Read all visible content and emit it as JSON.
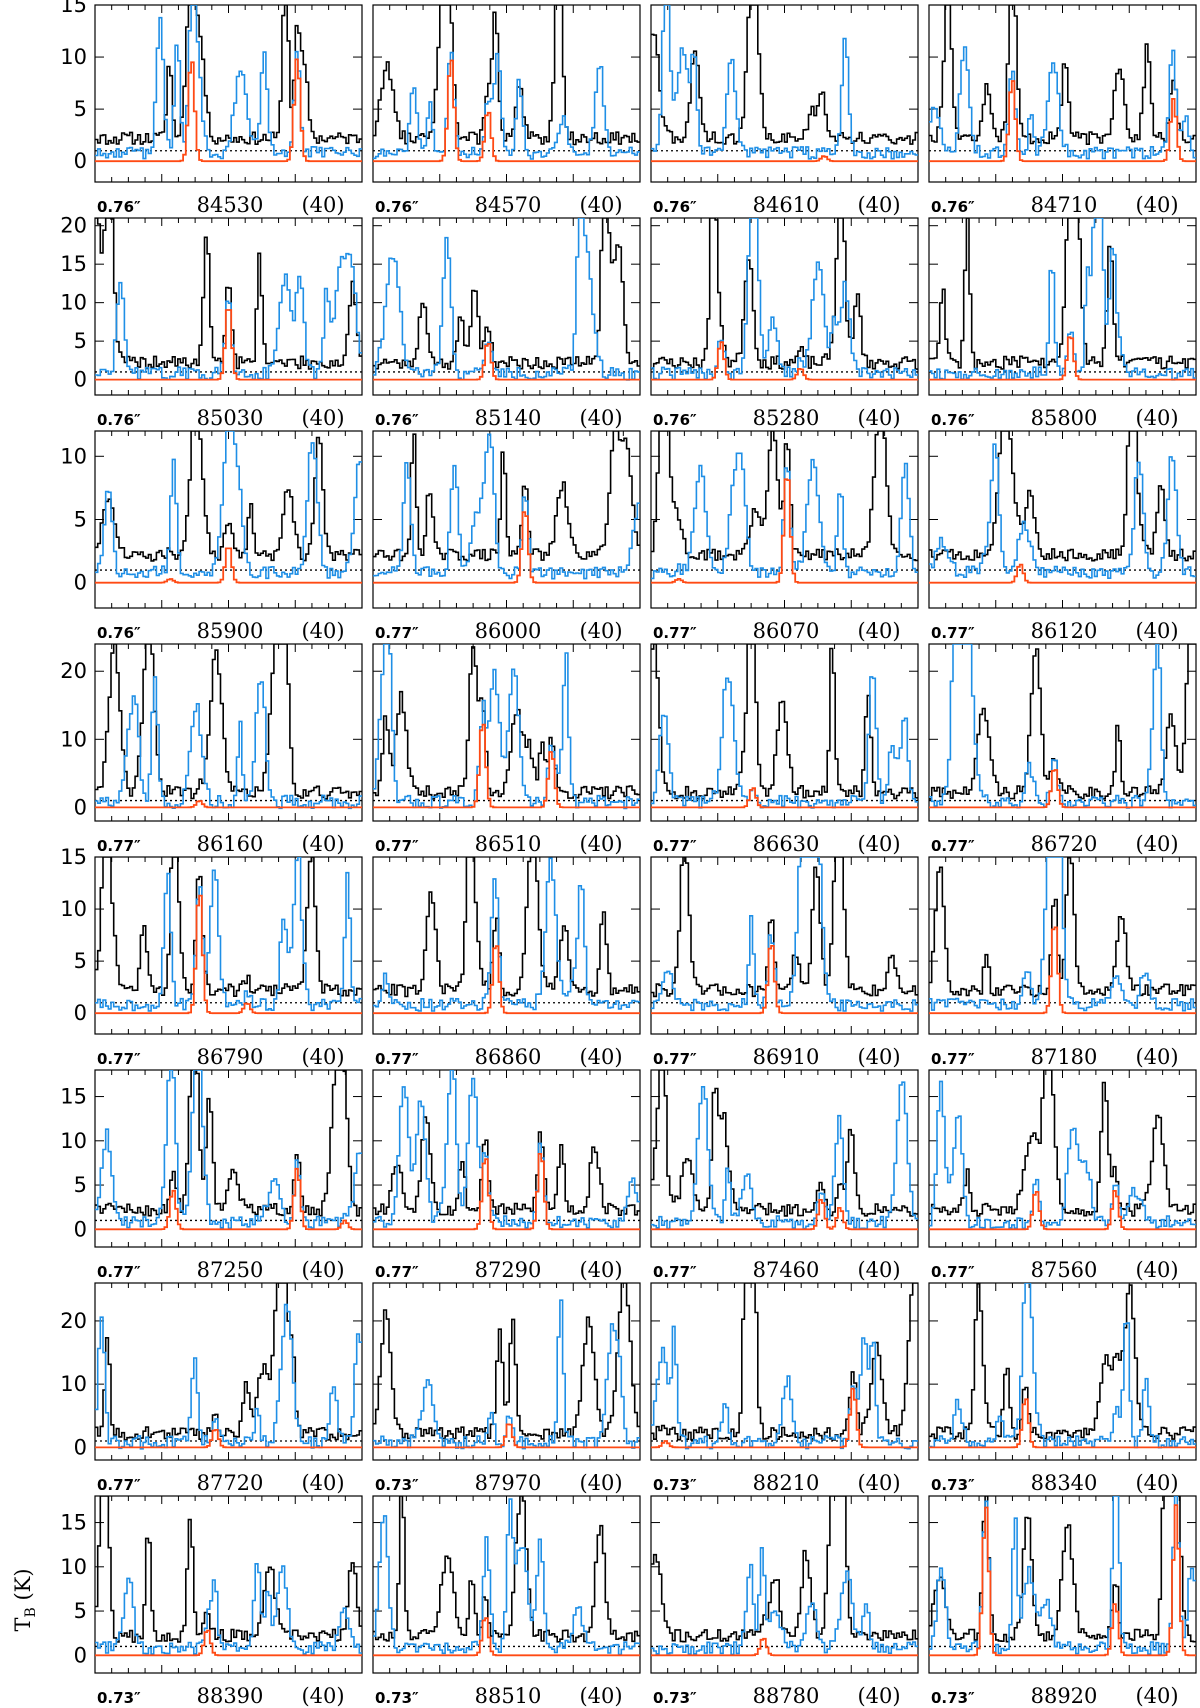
{
  "chart_data": {
    "type": "line",
    "ylabel": "T_B (K)",
    "grid": false,
    "series_colors": {
      "observed": "#000000",
      "model_all": "#1f8fe6",
      "model_molecule": "#ff4a14"
    },
    "rows": [
      {
        "ylim": [
          -2,
          15
        ],
        "yticks": [
          0,
          5,
          10,
          15
        ],
        "panels": [
          {
            "resolution": "0.76″",
            "frequency": "84530",
            "channels": "(40)",
            "mol_peaks": [
              [
                0.36,
                10
              ],
              [
                0.76,
                10
              ]
            ]
          },
          {
            "resolution": "0.76″",
            "frequency": "84570",
            "channels": "(40)",
            "mol_peaks": [
              [
                0.29,
                10
              ],
              [
                0.43,
                5
              ]
            ]
          },
          {
            "resolution": "0.76″",
            "frequency": "84610",
            "channels": "(40)",
            "mol_peaks": [
              [
                0.65,
                0.5
              ]
            ]
          },
          {
            "resolution": "0.76″",
            "frequency": "84710",
            "channels": "(40)",
            "mol_peaks": [
              [
                0.31,
                8
              ],
              [
                0.92,
                6
              ]
            ]
          }
        ]
      },
      {
        "ylim": [
          -2,
          21
        ],
        "yticks": [
          0,
          5,
          10,
          15,
          20
        ],
        "panels": [
          {
            "resolution": "0.76″",
            "frequency": "85030",
            "channels": "(40)",
            "mol_peaks": [
              [
                0.5,
                10
              ]
            ]
          },
          {
            "resolution": "0.76″",
            "frequency": "85140",
            "channels": "(40)",
            "mol_peaks": [
              [
                0.43,
                5
              ]
            ]
          },
          {
            "resolution": "0.76″",
            "frequency": "85280",
            "channels": "(40)",
            "mol_peaks": [
              [
                0.26,
                5
              ],
              [
                0.56,
                1.5
              ]
            ]
          },
          {
            "resolution": "0.76″",
            "frequency": "85800",
            "channels": "(40)",
            "mol_peaks": [
              [
                0.53,
                6
              ]
            ]
          }
        ]
      },
      {
        "ylim": [
          -2,
          12
        ],
        "yticks": [
          0,
          5,
          10
        ],
        "panels": [
          {
            "resolution": "0.76″",
            "frequency": "85900",
            "channels": "(40)",
            "mol_peaks": [
              [
                0.5,
                3
              ],
              [
                0.28,
                0.3
              ]
            ]
          },
          {
            "resolution": "0.77″",
            "frequency": "86000",
            "channels": "(40)",
            "mol_peaks": [
              [
                0.57,
                6
              ]
            ]
          },
          {
            "resolution": "0.77″",
            "frequency": "86070",
            "channels": "(40)",
            "mol_peaks": [
              [
                0.51,
                9
              ],
              [
                0.1,
                0.3
              ]
            ]
          },
          {
            "resolution": "0.77″",
            "frequency": "86120",
            "channels": "(40)",
            "mol_peaks": [
              [
                0.34,
                1.5
              ]
            ]
          }
        ]
      },
      {
        "ylim": [
          -2,
          24
        ],
        "yticks": [
          0,
          10,
          20
        ],
        "panels": [
          {
            "resolution": "0.77″",
            "frequency": "86160",
            "channels": "(40)",
            "mol_peaks": [
              [
                0.39,
                1
              ]
            ]
          },
          {
            "resolution": "0.77″",
            "frequency": "86510",
            "channels": "(40)",
            "mol_peaks": [
              [
                0.41,
                13
              ],
              [
                0.67,
                8.5
              ]
            ]
          },
          {
            "resolution": "0.77″",
            "frequency": "86630",
            "channels": "(40)",
            "mol_peaks": [
              [
                0.38,
                3
              ]
            ]
          },
          {
            "resolution": "0.77″",
            "frequency": "86720",
            "channels": "(40)",
            "mol_peaks": [
              [
                0.47,
                6
              ]
            ]
          }
        ]
      },
      {
        "ylim": [
          -2,
          15
        ],
        "yticks": [
          0,
          5,
          10,
          15
        ],
        "panels": [
          {
            "resolution": "0.77″",
            "frequency": "86790",
            "channels": "(40)",
            "mol_peaks": [
              [
                0.39,
                12
              ],
              [
                0.57,
                1
              ]
            ]
          },
          {
            "resolution": "0.77″",
            "frequency": "86860",
            "channels": "(40)",
            "mol_peaks": [
              [
                0.46,
                7
              ]
            ]
          },
          {
            "resolution": "0.77″",
            "frequency": "86910",
            "channels": "(40)",
            "mol_peaks": [
              [
                0.45,
                7
              ]
            ]
          },
          {
            "resolution": "0.77″",
            "frequency": "87180",
            "channels": "(40)",
            "mol_peaks": [
              [
                0.47,
                9
              ]
            ]
          }
        ]
      },
      {
        "ylim": [
          -2,
          18
        ],
        "yticks": [
          0,
          5,
          10,
          15
        ],
        "panels": [
          {
            "resolution": "0.77″",
            "frequency": "87250",
            "channels": "(40)",
            "mol_peaks": [
              [
                0.29,
                4.5
              ],
              [
                0.76,
                7
              ],
              [
                0.94,
                1
              ]
            ]
          },
          {
            "resolution": "0.77″",
            "frequency": "87290",
            "channels": "(40)",
            "mol_peaks": [
              [
                0.42,
                8.5
              ],
              [
                0.63,
                9
              ]
            ]
          },
          {
            "resolution": "0.77″",
            "frequency": "87460",
            "channels": "(40)",
            "mol_peaks": [
              [
                0.64,
                3.5
              ],
              [
                0.71,
                2.5
              ]
            ]
          },
          {
            "resolution": "0.77″",
            "frequency": "87560",
            "channels": "(40)",
            "mol_peaks": [
              [
                0.4,
                4.5
              ],
              [
                0.7,
                4.5
              ]
            ]
          }
        ]
      },
      {
        "ylim": [
          -2,
          26
        ],
        "yticks": [
          0,
          10,
          20
        ],
        "panels": [
          {
            "resolution": "0.77″",
            "frequency": "87720",
            "channels": "(40)",
            "mol_peaks": [
              [
                0.45,
                3
              ]
            ]
          },
          {
            "resolution": "0.73″",
            "frequency": "87970",
            "channels": "(40)",
            "mol_peaks": [
              [
                0.51,
                4
              ]
            ]
          },
          {
            "resolution": "0.73″",
            "frequency": "88210",
            "channels": "(40)",
            "mol_peaks": [
              [
                0.76,
                9.5
              ],
              [
                0.05,
                1
              ]
            ]
          },
          {
            "resolution": "0.73″",
            "frequency": "88340",
            "channels": "(40)",
            "mol_peaks": [
              [
                0.36,
                8
              ]
            ]
          }
        ]
      },
      {
        "ylim": [
          -2,
          18
        ],
        "yticks": [
          0,
          5,
          10,
          15
        ],
        "panels": [
          {
            "resolution": "0.73″",
            "frequency": "88390",
            "channels": "(40)",
            "mol_peaks": [
              [
                0.42,
                3
              ]
            ]
          },
          {
            "resolution": "0.73″",
            "frequency": "88510",
            "channels": "(40)",
            "mol_peaks": [
              [
                0.42,
                4.5
              ]
            ]
          },
          {
            "resolution": "0.73″",
            "frequency": "88780",
            "channels": "(40)",
            "mol_peaks": [
              [
                0.42,
                2
              ]
            ]
          },
          {
            "resolution": "0.73″",
            "frequency": "88920",
            "channels": "(40)",
            "mol_peaks": [
              [
                0.21,
                17
              ],
              [
                0.7,
                6
              ],
              [
                0.93,
                17
              ]
            ]
          }
        ]
      }
    ]
  }
}
